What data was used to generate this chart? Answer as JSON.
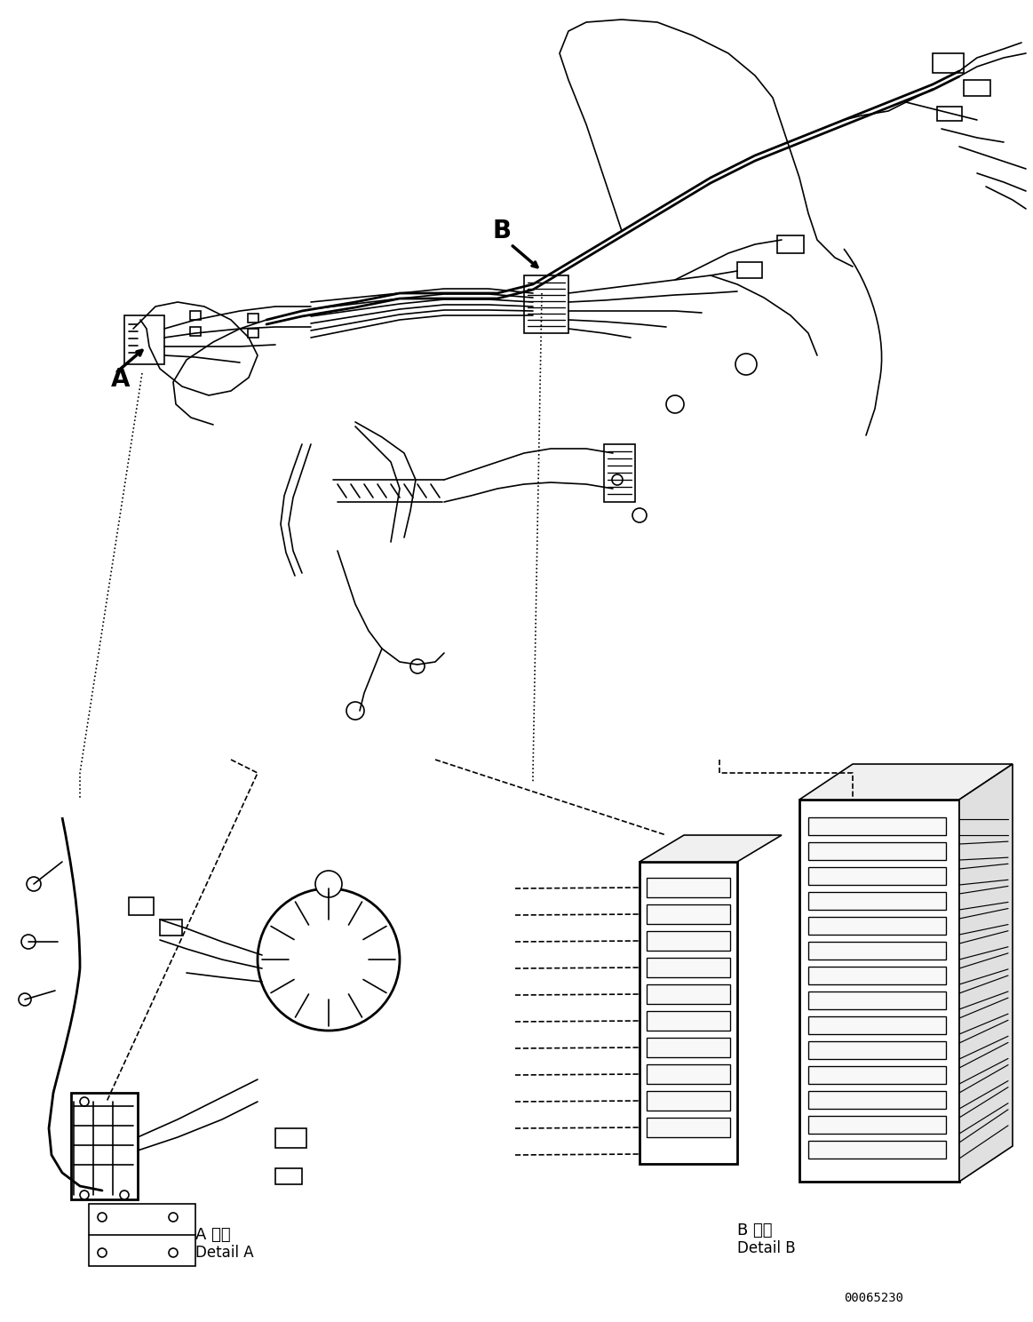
{
  "figsize": [
    11.63,
    14.88
  ],
  "dpi": 100,
  "bg_color": "#ffffff",
  "label_A": "A",
  "label_B": "B",
  "label_detail_A_jp": "A 詳細",
  "label_detail_A_en": "Detail A",
  "label_detail_B_jp": "B 詳細",
  "label_detail_B_en": "Detail B",
  "part_number": "00065230",
  "line_color": "#000000",
  "line_width": 1.2
}
